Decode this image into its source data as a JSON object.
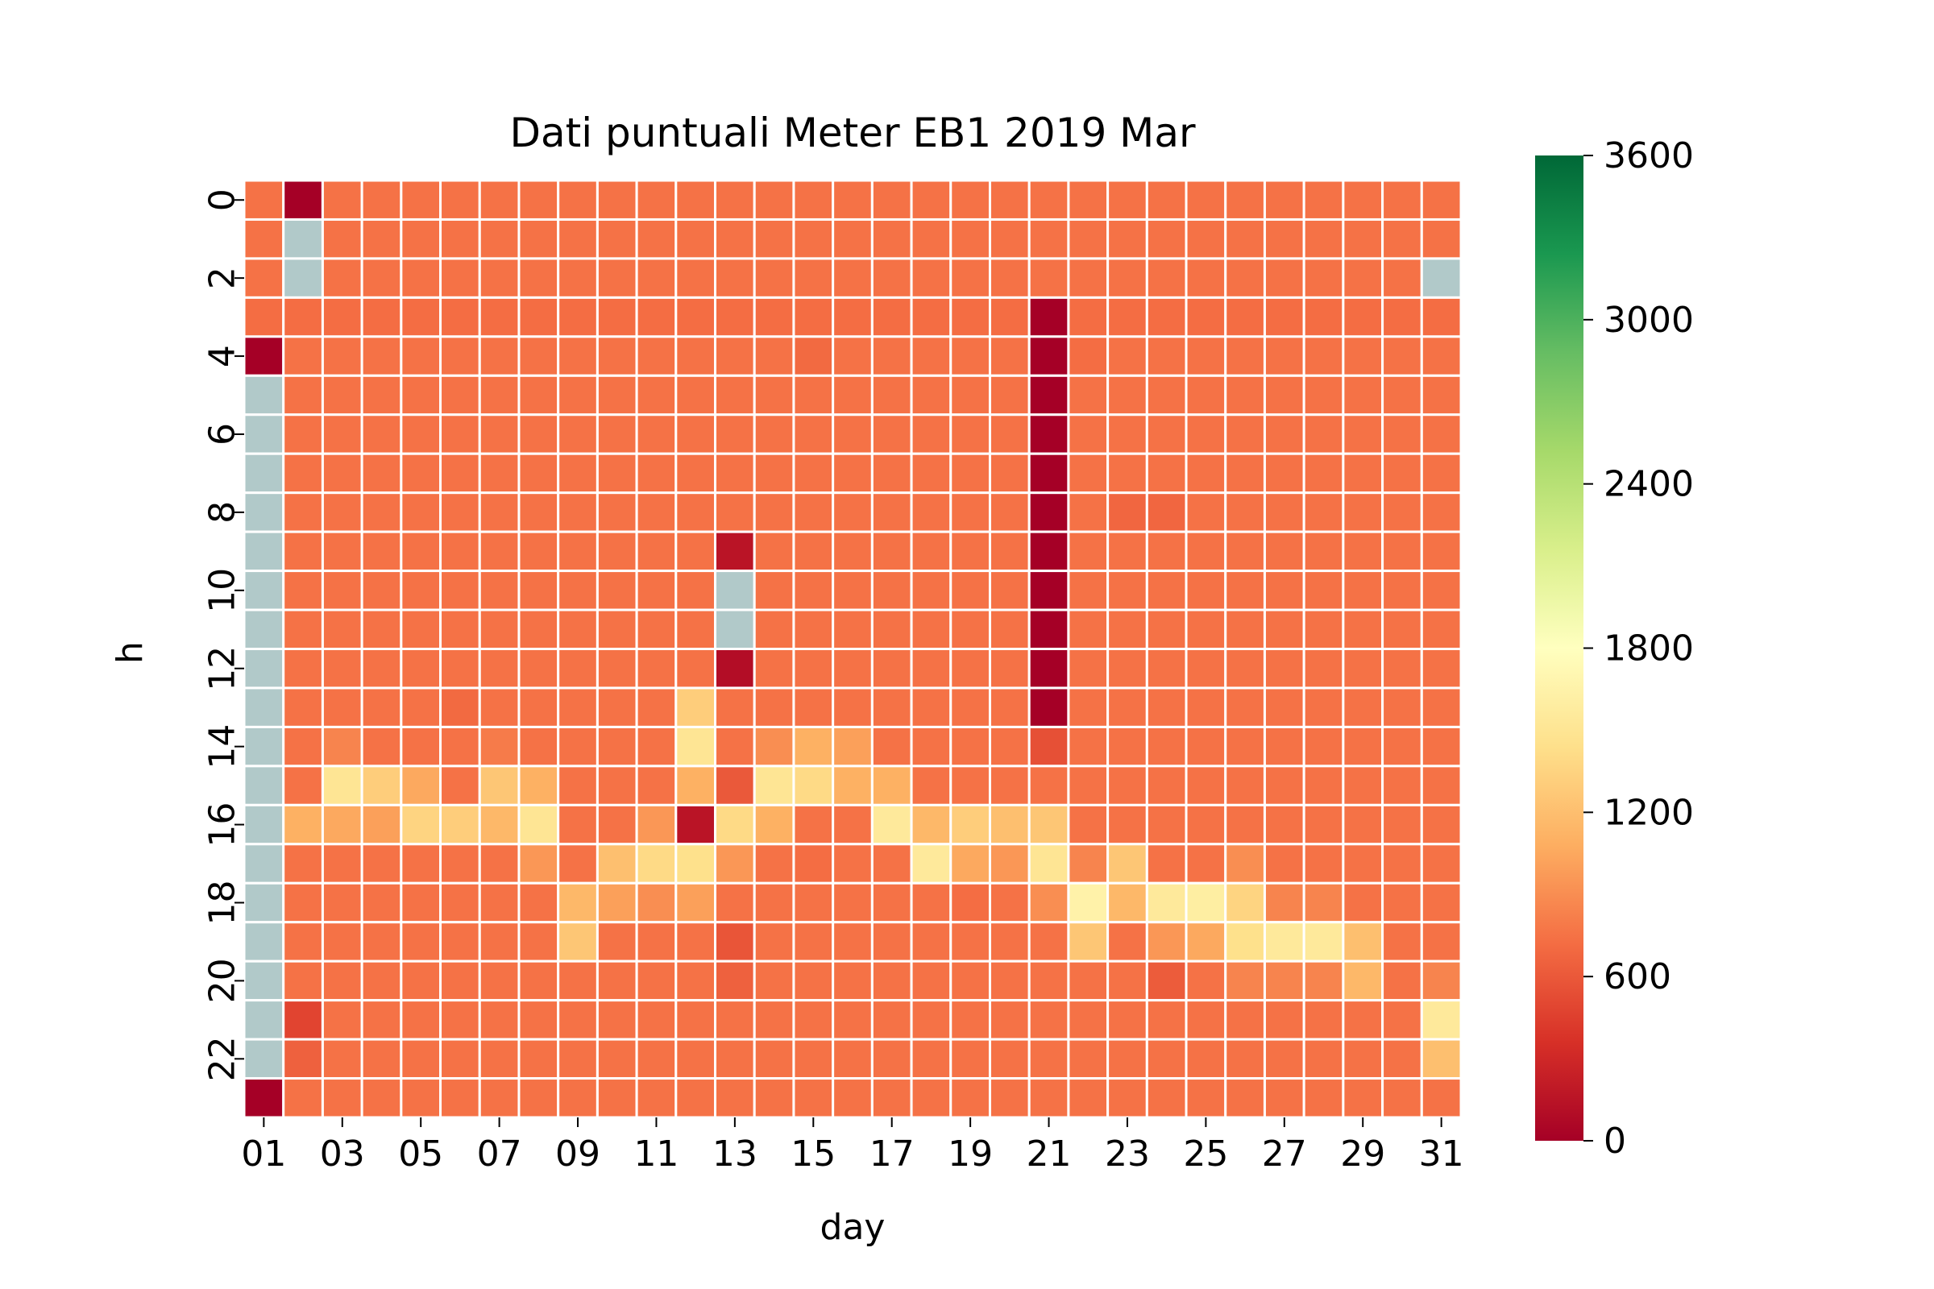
{
  "chart_data": {
    "type": "heatmap",
    "title": "Dati puntuali Meter EB1 2019 Mar",
    "xlabel": "day",
    "ylabel": "h",
    "x_categories": [
      "01",
      "02",
      "03",
      "04",
      "05",
      "06",
      "07",
      "08",
      "09",
      "10",
      "11",
      "12",
      "13",
      "14",
      "15",
      "16",
      "17",
      "18",
      "19",
      "20",
      "21",
      "22",
      "23",
      "24",
      "25",
      "26",
      "27",
      "28",
      "29",
      "30",
      "31"
    ],
    "x_tick_labels": [
      "01",
      "03",
      "05",
      "07",
      "09",
      "11",
      "13",
      "15",
      "17",
      "19",
      "21",
      "23",
      "25",
      "27",
      "29",
      "31"
    ],
    "y_categories": [
      "0",
      "1",
      "2",
      "3",
      "4",
      "5",
      "6",
      "7",
      "8",
      "9",
      "10",
      "11",
      "12",
      "13",
      "14",
      "15",
      "16",
      "17",
      "18",
      "19",
      "20",
      "21",
      "22",
      "23"
    ],
    "y_tick_labels": [
      "0",
      "2",
      "4",
      "6",
      "8",
      "10",
      "12",
      "14",
      "16",
      "18",
      "20",
      "22"
    ],
    "colormap": "RdYlGn",
    "vmin": 0,
    "vmax": 3600,
    "colorbar_ticks": [
      0,
      600,
      1200,
      1800,
      2400,
      3000,
      3600
    ],
    "missing_color": "#b1c9c9",
    "grid_line_color": "#ffffff",
    "missing_value": null,
    "note_values": "values[h][day-1]; null = missing cell",
    "values": [
      [
        750,
        0,
        750,
        750,
        750,
        750,
        750,
        750,
        750,
        750,
        750,
        750,
        750,
        750,
        750,
        750,
        750,
        750,
        750,
        750,
        750,
        750,
        750,
        750,
        750,
        750,
        750,
        750,
        750,
        750,
        750
      ],
      [
        750,
        null,
        750,
        750,
        750,
        750,
        750,
        750,
        750,
        750,
        750,
        750,
        750,
        750,
        750,
        750,
        750,
        750,
        750,
        750,
        750,
        750,
        750,
        750,
        750,
        750,
        750,
        750,
        750,
        750,
        750
      ],
      [
        750,
        null,
        750,
        750,
        750,
        750,
        750,
        750,
        750,
        750,
        750,
        750,
        750,
        750,
        750,
        750,
        750,
        750,
        750,
        750,
        750,
        750,
        750,
        750,
        750,
        750,
        750,
        750,
        750,
        750,
        null
      ],
      [
        720,
        720,
        720,
        720,
        720,
        720,
        720,
        720,
        720,
        720,
        720,
        720,
        720,
        720,
        720,
        720,
        720,
        720,
        720,
        720,
        0,
        720,
        720,
        720,
        720,
        720,
        720,
        720,
        720,
        720,
        720
      ],
      [
        0,
        750,
        750,
        750,
        750,
        750,
        750,
        750,
        750,
        750,
        750,
        750,
        750,
        750,
        700,
        750,
        750,
        750,
        750,
        750,
        0,
        720,
        750,
        750,
        750,
        750,
        750,
        750,
        750,
        750,
        750
      ],
      [
        null,
        750,
        750,
        750,
        750,
        750,
        750,
        750,
        750,
        750,
        750,
        750,
        750,
        750,
        750,
        750,
        750,
        750,
        750,
        750,
        0,
        750,
        750,
        750,
        750,
        750,
        750,
        750,
        750,
        750,
        750
      ],
      [
        null,
        750,
        750,
        750,
        750,
        750,
        750,
        750,
        750,
        750,
        750,
        750,
        750,
        750,
        750,
        750,
        750,
        750,
        750,
        750,
        0,
        750,
        750,
        750,
        750,
        750,
        750,
        750,
        750,
        750,
        750
      ],
      [
        null,
        750,
        750,
        750,
        750,
        750,
        750,
        750,
        750,
        750,
        750,
        750,
        750,
        750,
        750,
        750,
        750,
        750,
        750,
        750,
        0,
        750,
        750,
        750,
        750,
        750,
        750,
        750,
        750,
        750,
        750
      ],
      [
        null,
        750,
        750,
        750,
        750,
        750,
        750,
        750,
        750,
        750,
        750,
        750,
        750,
        750,
        750,
        750,
        750,
        750,
        750,
        750,
        0,
        750,
        680,
        680,
        750,
        750,
        750,
        750,
        750,
        750,
        750
      ],
      [
        null,
        750,
        750,
        750,
        750,
        750,
        750,
        750,
        750,
        750,
        750,
        750,
        150,
        750,
        750,
        750,
        750,
        750,
        750,
        750,
        0,
        750,
        750,
        750,
        750,
        750,
        750,
        750,
        750,
        750,
        750
      ],
      [
        null,
        750,
        750,
        750,
        750,
        750,
        750,
        750,
        750,
        750,
        750,
        750,
        null,
        750,
        750,
        750,
        750,
        750,
        750,
        750,
        0,
        750,
        750,
        750,
        750,
        750,
        750,
        750,
        750,
        750,
        750
      ],
      [
        null,
        750,
        750,
        750,
        750,
        750,
        750,
        750,
        750,
        750,
        750,
        750,
        null,
        750,
        750,
        750,
        750,
        750,
        750,
        750,
        0,
        750,
        750,
        750,
        750,
        750,
        750,
        750,
        750,
        750,
        750
      ],
      [
        null,
        750,
        750,
        750,
        750,
        750,
        750,
        750,
        750,
        750,
        750,
        750,
        100,
        750,
        750,
        750,
        750,
        750,
        750,
        750,
        0,
        750,
        750,
        750,
        750,
        750,
        750,
        750,
        750,
        750,
        750
      ],
      [
        null,
        750,
        750,
        750,
        750,
        700,
        750,
        750,
        750,
        750,
        750,
        1300,
        750,
        750,
        750,
        750,
        750,
        750,
        750,
        750,
        0,
        750,
        750,
        750,
        750,
        750,
        750,
        750,
        750,
        750,
        750
      ],
      [
        null,
        750,
        850,
        750,
        750,
        750,
        800,
        750,
        750,
        750,
        750,
        1500,
        750,
        900,
        1100,
        1000,
        750,
        750,
        750,
        750,
        550,
        750,
        750,
        750,
        750,
        750,
        750,
        750,
        750,
        750,
        750
      ],
      [
        null,
        750,
        1500,
        1300,
        1050,
        750,
        1250,
        1100,
        750,
        750,
        750,
        1100,
        600,
        1500,
        1400,
        1100,
        1100,
        750,
        750,
        750,
        750,
        750,
        750,
        750,
        750,
        750,
        750,
        750,
        750,
        750,
        750
      ],
      [
        null,
        1100,
        1050,
        1000,
        1350,
        1300,
        1150,
        1500,
        750,
        750,
        950,
        150,
        1400,
        1100,
        750,
        750,
        1550,
        1150,
        1300,
        1200,
        1250,
        750,
        750,
        750,
        750,
        750,
        750,
        750,
        750,
        750,
        750
      ],
      [
        null,
        750,
        750,
        750,
        750,
        750,
        750,
        950,
        750,
        1200,
        1400,
        1450,
        950,
        750,
        720,
        750,
        750,
        1550,
        1050,
        950,
        1500,
        850,
        1250,
        750,
        750,
        900,
        750,
        750,
        750,
        750,
        750
      ],
      [
        null,
        750,
        750,
        750,
        750,
        750,
        750,
        750,
        1150,
        1000,
        900,
        1000,
        750,
        750,
        750,
        750,
        750,
        750,
        720,
        750,
        900,
        1650,
        1150,
        1550,
        1600,
        1350,
        850,
        850,
        750,
        750,
        750
      ],
      [
        null,
        750,
        750,
        750,
        750,
        750,
        750,
        750,
        1250,
        750,
        750,
        750,
        580,
        750,
        750,
        750,
        750,
        750,
        750,
        750,
        750,
        1250,
        750,
        950,
        1050,
        1450,
        1550,
        1550,
        1200,
        750,
        750
      ],
      [
        null,
        750,
        750,
        750,
        750,
        750,
        750,
        750,
        750,
        750,
        750,
        750,
        650,
        750,
        750,
        750,
        750,
        750,
        750,
        750,
        750,
        750,
        750,
        620,
        750,
        850,
        850,
        850,
        1150,
        750,
        850
      ],
      [
        null,
        480,
        750,
        750,
        750,
        750,
        750,
        750,
        750,
        750,
        750,
        750,
        750,
        750,
        750,
        750,
        750,
        750,
        750,
        750,
        750,
        750,
        750,
        750,
        750,
        750,
        750,
        750,
        750,
        750,
        1550
      ],
      [
        null,
        650,
        750,
        750,
        750,
        750,
        750,
        750,
        750,
        750,
        750,
        750,
        750,
        750,
        750,
        750,
        750,
        750,
        750,
        750,
        750,
        750,
        750,
        750,
        750,
        750,
        750,
        750,
        750,
        750,
        1200
      ],
      [
        0,
        750,
        750,
        750,
        750,
        750,
        750,
        750,
        750,
        750,
        750,
        750,
        750,
        750,
        750,
        750,
        750,
        750,
        750,
        750,
        750,
        750,
        750,
        750,
        750,
        750,
        750,
        750,
        750,
        750,
        750
      ]
    ]
  }
}
